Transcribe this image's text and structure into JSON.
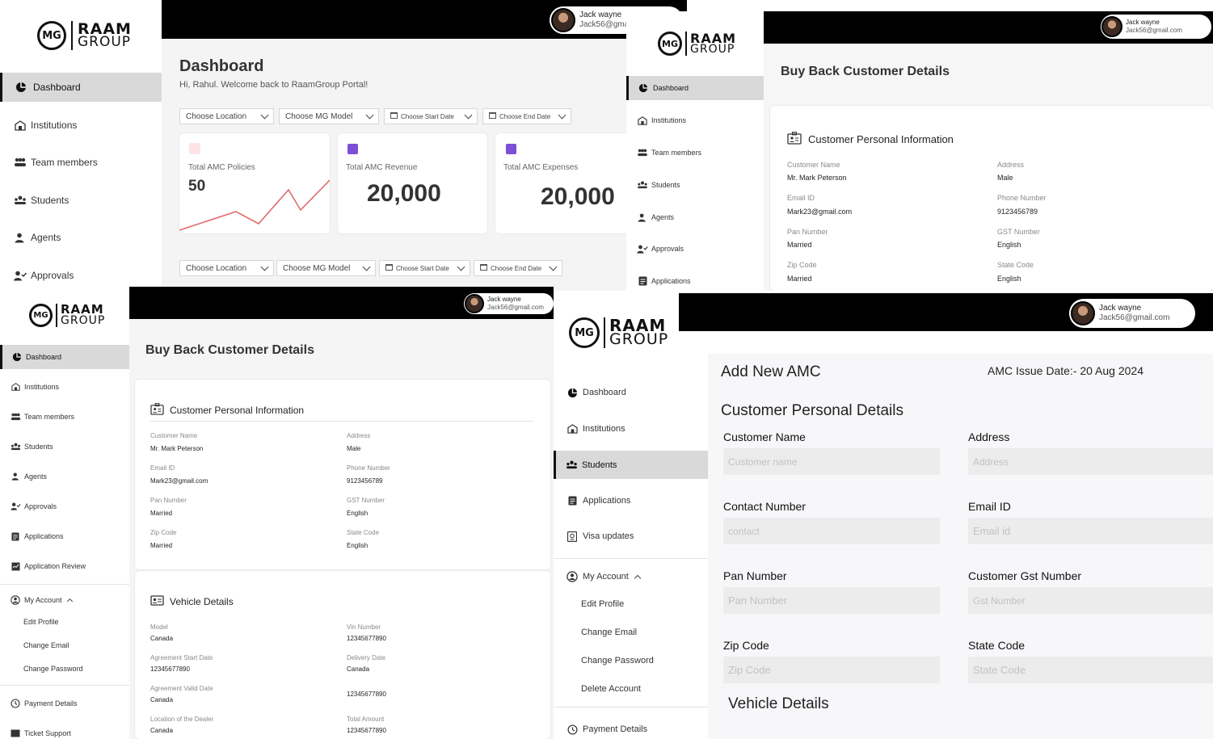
{
  "brand": {
    "mg": "MG",
    "line1": "RAAM",
    "line2": "GROUP"
  },
  "user": {
    "name": "Jack wayne",
    "email": "Jack56@gmail.com"
  },
  "colors": {
    "active_bg": "#d9d9d9",
    "accent_purple": "#7b4fd6",
    "accent_red": "#e06b6b",
    "topbar": "#000000"
  },
  "dashboard": {
    "title": "Dashboard",
    "welcome": "Hi, Rahul. Welcome back to RaamGroup Portal!",
    "filters": [
      "Choose Location",
      "Choose MG Model",
      "Choose Start Date",
      "Choose End Date"
    ],
    "cards": [
      {
        "label": "Total AMC Policies",
        "value": "50"
      },
      {
        "label": "Total AMC Revenue",
        "value": "20,000"
      },
      {
        "label": "Total AMC Expenses",
        "value": "20,000"
      }
    ],
    "nav": [
      "Dashboard",
      "Institutions",
      "Team members",
      "Students",
      "Agents",
      "Approvals"
    ]
  },
  "buyback": {
    "title": "Buy Back Customer Details",
    "personal_title": "Customer Personal Information",
    "fields": [
      {
        "label": "Customer Name",
        "value": "Mr. Mark Peterson"
      },
      {
        "label": "Address",
        "value": "Male"
      },
      {
        "label": "Email ID",
        "value": "Mark23@gmail.com"
      },
      {
        "label": "Phone Number",
        "value": "9123456789"
      },
      {
        "label": "Pan Number",
        "value": "Married"
      },
      {
        "label": "GST Number",
        "value": "English"
      },
      {
        "label": "Zip Code",
        "value": "Married"
      },
      {
        "label": "State Code",
        "value": "English"
      }
    ],
    "nav_short": [
      "Dashboard",
      "Institutions",
      "Team members",
      "Students",
      "Agents",
      "Approvals",
      "Applications"
    ],
    "nav_full": [
      "Dashboard",
      "Institutions",
      "Team members",
      "Students",
      "Agents",
      "Approvals",
      "Applications",
      "Application Review"
    ],
    "account": "My Account",
    "account_items": [
      "Edit Profile",
      "Change Email",
      "Change Password"
    ],
    "bottom_nav": [
      "Payment Details",
      "Ticket Support"
    ],
    "vehicle_title": "Vehicle Details",
    "vehicle_fields": [
      {
        "label": "Model",
        "value": "Canada"
      },
      {
        "label": "Vin Number",
        "value": "12345677890"
      },
      {
        "label": "Agreement Start Date",
        "value": "12345677890"
      },
      {
        "label": "Delivery Date",
        "value": "Canada"
      },
      {
        "label": "Agreement Valid Date",
        "value": "Canada"
      },
      {
        "label": "",
        "value": "12345677890"
      },
      {
        "label": "Location of the Dealer",
        "value": "Canada"
      },
      {
        "label": "Total Amount",
        "value": "12345677890"
      }
    ]
  },
  "amc": {
    "title": "Add New AMC",
    "issue_date": "AMC Issue Date:- 20 Aug 2024",
    "section": "Customer Personal Details",
    "fields": [
      {
        "label": "Customer Name",
        "placeholder": "Customer name"
      },
      {
        "label": "Address",
        "placeholder": "Address"
      },
      {
        "label": "Contact Number",
        "placeholder": "contact"
      },
      {
        "label": "Email ID",
        "placeholder": "Email id"
      },
      {
        "label": "Pan Number",
        "placeholder": "Pan Number"
      },
      {
        "label": "Customer Gst Number",
        "placeholder": "Gst Number"
      },
      {
        "label": "Zip Code",
        "placeholder": "Zip Code"
      },
      {
        "label": "State Code",
        "placeholder": "State Code"
      }
    ],
    "vehicle_title": "Vehicle Details",
    "nav": [
      "Dashboard",
      "Institutions",
      "Students",
      "Applications",
      "Visa updates"
    ],
    "account": "My Account",
    "account_items": [
      "Edit Profile",
      "Change Email",
      "Change Password",
      "Delete Account"
    ],
    "bottom_nav": [
      "Payment Details"
    ]
  }
}
